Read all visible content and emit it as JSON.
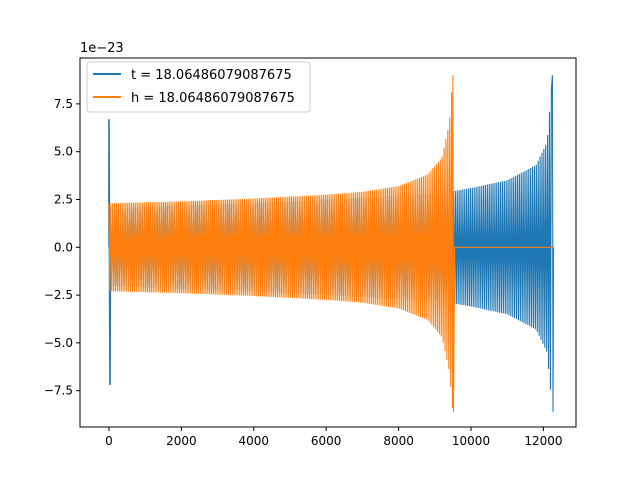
{
  "chart_data": {
    "type": "line",
    "title": "",
    "xlabel": "",
    "ylabel": "",
    "y_offset_label": "1e−23",
    "xlim": [
      -800,
      12900
    ],
    "ylim": [
      -9.4,
      9.9
    ],
    "grid": false,
    "legend": "top-left",
    "x_ticks": [
      0,
      2000,
      4000,
      6000,
      8000,
      10000,
      12000
    ],
    "x_tick_labels": [
      "0",
      "2000",
      "4000",
      "6000",
      "8000",
      "10000",
      "12000"
    ],
    "y_ticks": [
      -7.5,
      -5.0,
      -2.5,
      0.0,
      2.5,
      5.0,
      7.5
    ],
    "y_tick_labels": [
      "−7.5",
      "−5.0",
      "−2.5",
      "0.0",
      "2.5",
      "5.0",
      "7.5"
    ],
    "series": [
      {
        "name": "t = 18.06486079087675",
        "color": "#1f77b4",
        "description_envelope": {
          "x": [
            0,
            2000,
            4000,
            6000,
            8000,
            9000,
            9550,
            10000,
            11000,
            11800,
            12100,
            12250,
            12280
          ],
          "upper": [
            2.0,
            2.2,
            2.3,
            2.5,
            2.7,
            2.8,
            2.95,
            3.1,
            3.5,
            4.3,
            5.5,
            9.0,
            0
          ],
          "lower": [
            -2.0,
            -2.2,
            -2.3,
            -2.5,
            -2.7,
            -2.8,
            -2.95,
            -3.1,
            -3.5,
            -4.3,
            -5.5,
            -8.6,
            0
          ]
        },
        "initial_spike": {
          "x": 0,
          "max": 6.7,
          "min": -7.2
        }
      },
      {
        "name": "h = 18.06486079087675",
        "color": "#ff7f0e",
        "description_envelope": {
          "x": [
            0,
            2000,
            4000,
            6000,
            7000,
            8000,
            8800,
            9200,
            9400,
            9500,
            9550
          ],
          "upper": [
            2.3,
            2.4,
            2.55,
            2.75,
            2.9,
            3.2,
            3.8,
            4.7,
            6.5,
            9.0,
            0
          ],
          "lower": [
            -2.3,
            -2.4,
            -2.55,
            -2.75,
            -2.9,
            -3.2,
            -3.8,
            -4.7,
            -6.5,
            -8.6,
            0
          ]
        },
        "tail_zero_until": 12280
      }
    ]
  }
}
